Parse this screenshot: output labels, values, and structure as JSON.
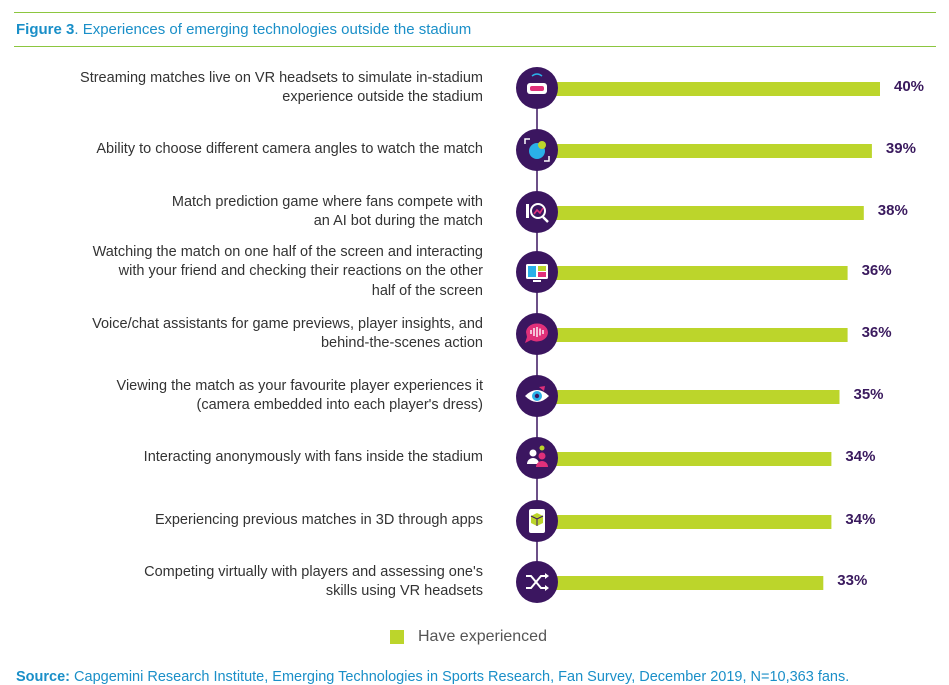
{
  "header": {
    "figure_label": "Figure 3",
    "figure_title": ". Experiences of emerging technologies outside the stadium"
  },
  "colors": {
    "bar": "#bcd52b",
    "icon_circle": "#3b1660",
    "percent_text": "#3a1a5e",
    "rule": "#8cc63f",
    "title": "#1a8fc8"
  },
  "chart_data": {
    "type": "bar",
    "orientation": "horizontal",
    "categories": [
      "Streaming matches live on VR headsets to simulate in-stadium experience outside the stadium",
      "Ability to choose different camera angles to watch the match",
      "Match prediction game where fans compete with an AI bot during the match",
      "Watching the match on one half of the screen and interacting with your friend and checking their reactions on the other half of the screen",
      "Voice/chat assistants for game previews, player insights, and behind-the-scenes action",
      "Viewing the match as your favourite player experiences it (camera embedded into each player's dress)",
      "Interacting anonymously with fans inside the stadium",
      "Experiencing previous matches in 3D through apps",
      "Competing virtually with players and assessing one's skills using VR headsets"
    ],
    "label_lines": [
      [
        "Streaming matches live on VR headsets to simulate in-stadium",
        "experience outside the stadium"
      ],
      [
        "Ability to choose different camera angles to watch the match"
      ],
      [
        "Match prediction game where fans compete with",
        "an AI bot during the match"
      ],
      [
        "Watching the match on one half of the screen and interacting",
        "with your friend and checking their reactions on the other",
        "half of the screen"
      ],
      [
        "Voice/chat assistants for game previews, player insights, and",
        "behind-the-scenes action"
      ],
      [
        "Viewing the match as your favourite player experiences it",
        "(camera embedded into each player's dress)"
      ],
      [
        "Interacting anonymously with fans inside the stadium"
      ],
      [
        "Experiencing previous matches in 3D through apps"
      ],
      [
        "Competing virtually with players and assessing one's",
        "skills using VR headsets"
      ]
    ],
    "values": [
      40,
      39,
      38,
      36,
      36,
      35,
      34,
      34,
      33
    ],
    "value_labels": [
      "40%",
      "39%",
      "38%",
      "36%",
      "36%",
      "35%",
      "34%",
      "34%",
      "33%"
    ],
    "icons": [
      "vr-headset-icon",
      "camera-angle-icon",
      "analytics-magnifier-icon",
      "split-screen-icon",
      "voice-chat-icon",
      "eye-camera-icon",
      "fan-group-icon",
      "3d-device-icon",
      "shuffle-icon"
    ],
    "series": [
      {
        "name": "Have experienced",
        "values": [
          40,
          39,
          38,
          36,
          36,
          35,
          34,
          34,
          33
        ]
      }
    ],
    "legend_position": "bottom-center",
    "grid": false
  },
  "legend": {
    "label": "Have experienced"
  },
  "footer": {
    "source_label": "Source:",
    "source_text": " Capgemini Research Institute, Emerging Technologies in Sports Research, Fan Survey, December 2019, N=10,363 fans."
  }
}
